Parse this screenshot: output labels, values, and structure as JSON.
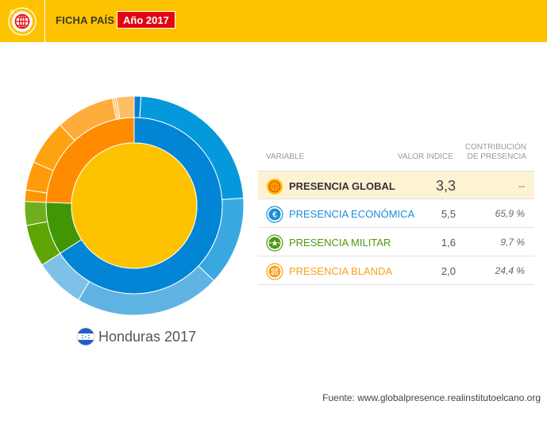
{
  "header": {
    "title": "FICHA PAÍS",
    "year_badge": "Año 2017",
    "logo_icon": "globe-icon"
  },
  "country": {
    "label": "Honduras 2017",
    "flag_icon": "honduras-flag-icon"
  },
  "table": {
    "headers": {
      "variable": "VARIABLE",
      "valor": "VALOR ÍNDICE",
      "contribucion_line1": "CONTRIBUCIÓN",
      "contribucion_line2": "DE PRESENCIA"
    },
    "rows": [
      {
        "label": "PRESENCIA GLOBAL",
        "value": "3,3",
        "contribution": "--",
        "color": "#333333",
        "icon": "globe-icon"
      },
      {
        "label": "PRESENCIA ECONÓMICA",
        "value": "5,5",
        "contribution": "65,9 %",
        "color": "#1A8FD6",
        "icon": "euro-icon"
      },
      {
        "label": "PRESENCIA MILITAR",
        "value": "1,6",
        "contribution": "9,7 %",
        "color": "#4E9A10",
        "icon": "military-star-icon"
      },
      {
        "label": "PRESENCIA BLANDA",
        "value": "2,0",
        "contribution": "24,4 %",
        "color": "#F7A21B",
        "icon": "soft-power-icon"
      }
    ]
  },
  "source": "Fuente: www.globalpresence.realinstitutoelcano.org",
  "chart_data": {
    "type": "sunburst",
    "title": "Honduras 2017",
    "center": {
      "label": "Presencia global",
      "value": 3.3,
      "color": "#FDC300"
    },
    "categories": [
      "Presencia económica",
      "Presencia militar",
      "Presencia blanda"
    ],
    "values": [
      65.9,
      9.7,
      24.4
    ],
    "colors": [
      "#0285D4",
      "#419703",
      "#FF8C00"
    ],
    "series": [
      {
        "name": "Presencia económica",
        "share": 65.9,
        "color": "#0285D4",
        "subsegments": [
          {
            "share": 1.0,
            "color": "#0A7FD0"
          },
          {
            "share": 22.9,
            "color": "#0399DA"
          },
          {
            "share": 13.1,
            "color": "#3AA8E0"
          },
          {
            "share": 21.5,
            "color": "#5FB3E3"
          },
          {
            "share": 7.4,
            "color": "#7DC1E8"
          }
        ]
      },
      {
        "name": "Presencia militar",
        "share": 9.7,
        "color": "#419703",
        "subsegments": [
          {
            "share": 6.2,
            "color": "#5CA502"
          },
          {
            "share": 3.5,
            "color": "#6FAE1F"
          }
        ]
      },
      {
        "name": "Presencia blanda",
        "share": 24.4,
        "color": "#FF8C00",
        "subsegments": [
          {
            "share": 1.7,
            "color": "#FF9500"
          },
          {
            "share": 4.2,
            "color": "#FF9B0A"
          },
          {
            "share": 6.7,
            "color": "#FFA210"
          },
          {
            "share": 8.6,
            "color": "#FFAD3A"
          },
          {
            "share": 0.3,
            "color": "#FFB450"
          },
          {
            "share": 0.3,
            "color": "#FFB450"
          },
          {
            "share": 2.6,
            "color": "#FFBE66"
          }
        ]
      }
    ]
  }
}
